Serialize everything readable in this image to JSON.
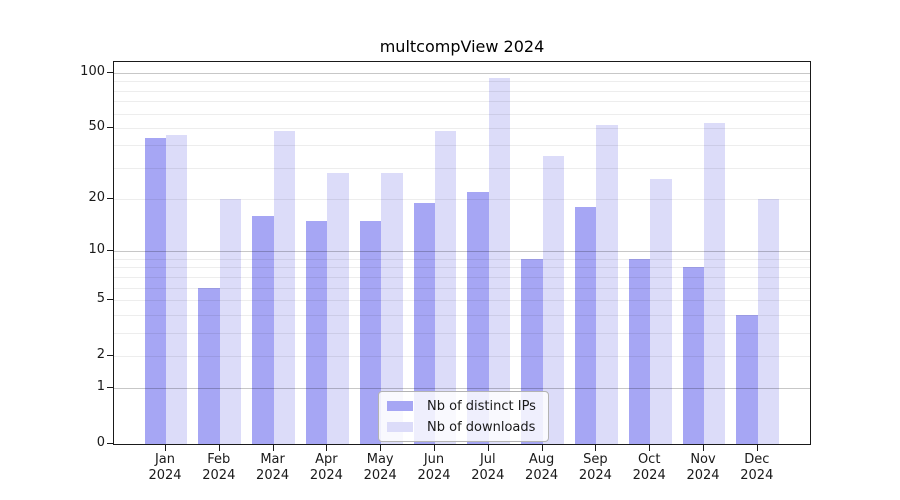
{
  "chart_data": {
    "type": "bar",
    "title": "multcompView 2024",
    "categories": [
      "Jan",
      "Feb",
      "Mar",
      "Apr",
      "May",
      "Jun",
      "Jul",
      "Aug",
      "Sep",
      "Oct",
      "Nov",
      "Dec"
    ],
    "category_year": "2024",
    "series": [
      {
        "name": "Nb of distinct IPs",
        "color": "#a6a6f4",
        "values": [
          44,
          6,
          16,
          15,
          15,
          19,
          22,
          9,
          18,
          9,
          8,
          4
        ]
      },
      {
        "name": "Nb of downloads",
        "color": "#dcdcf9",
        "values": [
          46,
          20,
          48,
          28,
          28,
          48,
          94,
          35,
          52,
          26,
          53,
          20
        ]
      }
    ],
    "yscale": "log1p",
    "ylim": [
      0,
      100
    ],
    "y_tick_labels": [
      0,
      1,
      2,
      5,
      10,
      20,
      50,
      100
    ],
    "gridlines_major": [
      1,
      10,
      100
    ],
    "gridlines_minor": [
      2,
      3,
      4,
      5,
      6,
      7,
      8,
      9,
      20,
      30,
      40,
      50,
      60,
      70,
      80,
      90
    ],
    "grid": true,
    "legend_position": "lower center"
  },
  "colors": {
    "background": "#ffffff",
    "axis": "#1a1a1a",
    "grid_major": "rgba(0,0,0,0.22)",
    "grid_minor": "rgba(0,0,0,0.07)",
    "legend_border": "#b3b3b3"
  }
}
